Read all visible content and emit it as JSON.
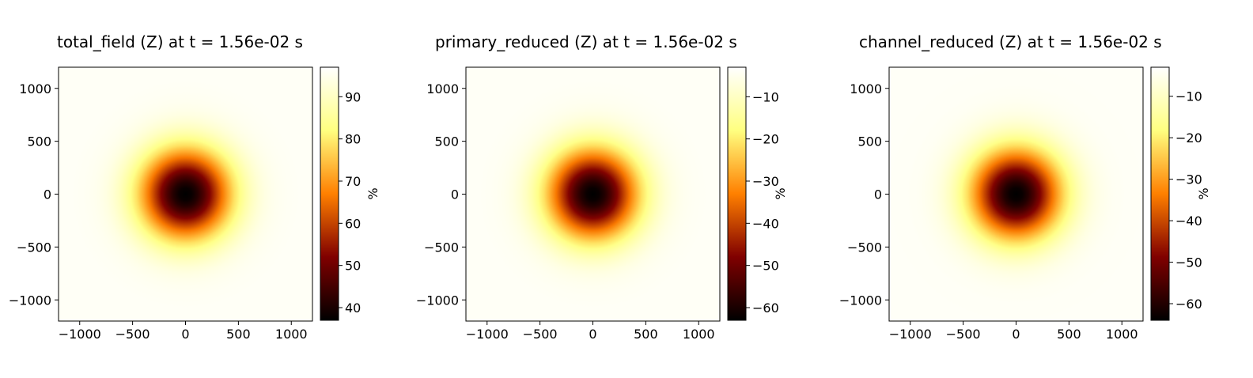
{
  "figure": {
    "panels": [
      {
        "title": "total_field (Z) at t = 1.56e-02 s",
        "colorbar_label": "%"
      },
      {
        "title": "primary_reduced (Z) at t = 1.56e-02 s",
        "colorbar_label": "%"
      },
      {
        "title": "channel_reduced (Z) at t = 1.56e-02 s",
        "colorbar_label": "%"
      }
    ]
  },
  "chart_data": [
    {
      "type": "heatmap",
      "title": "total_field (Z) at t = 1.56e-02 s",
      "colormap": "afmhot",
      "xlim": [
        -1200,
        1200
      ],
      "ylim": [
        -1200,
        1200
      ],
      "x_ticks": [
        -1000,
        -500,
        0,
        500,
        1000
      ],
      "y_ticks": [
        -1000,
        -500,
        0,
        500,
        1000
      ],
      "field": {
        "shape": "radial",
        "center": [
          0,
          0
        ],
        "center_value": 37,
        "edge_value": 96,
        "scale": 420
      },
      "colorbar": {
        "range": [
          37,
          97
        ],
        "ticks": [
          40,
          50,
          60,
          70,
          80,
          90
        ],
        "label": "%"
      }
    },
    {
      "type": "heatmap",
      "title": "primary_reduced (Z) at t = 1.56e-02 s",
      "colormap": "afmhot",
      "xlim": [
        -1200,
        1200
      ],
      "ylim": [
        -1200,
        1200
      ],
      "x_ticks": [
        -1000,
        -500,
        0,
        500,
        1000
      ],
      "y_ticks": [
        -1000,
        -500,
        0,
        500,
        1000
      ],
      "field": {
        "shape": "radial",
        "center": [
          0,
          0
        ],
        "center_value": -63,
        "edge_value": -4,
        "scale": 420
      },
      "colorbar": {
        "range": [
          -63,
          -3
        ],
        "ticks": [
          -60,
          -50,
          -40,
          -30,
          -20,
          -10
        ],
        "label": "%"
      }
    },
    {
      "type": "heatmap",
      "title": "channel_reduced (Z) at t = 1.56e-02 s",
      "colormap": "afmhot",
      "xlim": [
        -1200,
        1200
      ],
      "ylim": [
        -1200,
        1200
      ],
      "x_ticks": [
        -1000,
        -500,
        0,
        500,
        1000
      ],
      "y_ticks": [
        -1000,
        -500,
        0,
        500,
        1000
      ],
      "field": {
        "shape": "radial",
        "center": [
          0,
          0
        ],
        "center_value": -64,
        "edge_value": -4,
        "scale": 420
      },
      "colorbar": {
        "range": [
          -64,
          -3
        ],
        "ticks": [
          -60,
          -50,
          -40,
          -30,
          -20,
          -10
        ],
        "label": "%"
      }
    }
  ]
}
